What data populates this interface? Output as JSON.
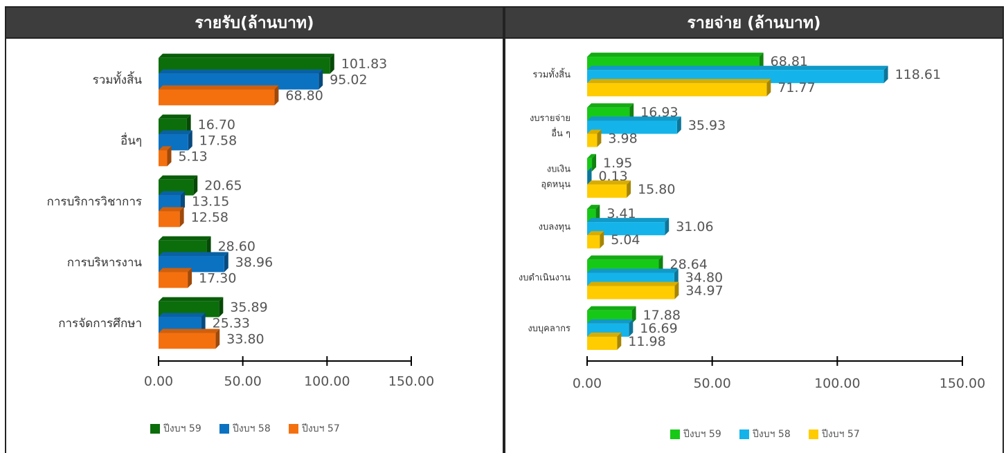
{
  "chart_data": [
    {
      "type": "bar",
      "orientation": "horizontal",
      "title": "รายรับ(ล้านบาท)",
      "categories": [
        "รวมทั้งสิ้น",
        "อื่นๆ",
        "การบริการวิชาการ",
        "การบริหารงาน",
        "การจัดการศึกษา"
      ],
      "series": [
        {
          "name": "ปีงบฯ 59",
          "color": "#0b6e0b",
          "values": [
            101.83,
            16.7,
            20.65,
            28.6,
            35.89
          ],
          "value_labels": [
            "101.83",
            "16.70",
            "20.65",
            "28.60",
            "35.89"
          ]
        },
        {
          "name": "ปีงบฯ 58",
          "color": "#0b72c2",
          "values": [
            95.02,
            17.58,
            13.15,
            38.96,
            25.33
          ],
          "value_labels": [
            "95.02",
            "17.58",
            "13.15",
            "38.96",
            "25.33"
          ]
        },
        {
          "name": "ปีงบฯ 57",
          "color": "#f4700f",
          "values": [
            68.8,
            5.13,
            12.58,
            17.3,
            33.8
          ],
          "value_labels": [
            "68.80",
            "5.13",
            "12.58",
            "17.30",
            "33.80"
          ]
        }
      ],
      "xlim": [
        0,
        150
      ],
      "xticks": [
        {
          "value": 0,
          "label": "0.00"
        },
        {
          "value": 50,
          "label": "50.00"
        },
        {
          "value": 100,
          "label": "100.00"
        },
        {
          "value": 150,
          "label": "150.00"
        }
      ],
      "legend": "bottom"
    },
    {
      "type": "bar",
      "orientation": "horizontal",
      "title": "รายจ่าย (ล้านบาท)",
      "categories": [
        "รวมทั้งสิ้น",
        "งบรายจ่าย\nอื่น ๆ",
        "งบเงิน\nอุดหนุน",
        "งบลงทุน",
        "งบดำเนินงาน",
        "งบบุคลากร"
      ],
      "series": [
        {
          "name": "ปีงบฯ 59",
          "color": "#17c917",
          "values": [
            68.81,
            16.93,
            1.95,
            3.41,
            28.64,
            17.88
          ],
          "value_labels": [
            "68.81",
            "16.93",
            "1.95",
            "3.41",
            "28.64",
            "17.88"
          ]
        },
        {
          "name": "ปีงบฯ 58",
          "color": "#14b4ea",
          "values": [
            118.61,
            35.93,
            0.13,
            31.06,
            34.8,
            16.69
          ],
          "value_labels": [
            "118.61",
            "35.93",
            "0.13",
            "31.06",
            "34.80",
            "16.69"
          ]
        },
        {
          "name": "ปีงบฯ 57",
          "color": "#ffcc00",
          "values": [
            71.77,
            3.98,
            15.8,
            5.04,
            34.97,
            11.98
          ],
          "value_labels": [
            "71.77",
            "3.98",
            "15.80",
            "5.04",
            "34.97",
            "11.98"
          ]
        }
      ],
      "xlim": [
        0,
        150
      ],
      "xticks": [
        {
          "value": 0,
          "label": "0.00"
        },
        {
          "value": 50,
          "label": "50.00"
        },
        {
          "value": 100,
          "label": "100.00"
        },
        {
          "value": 150,
          "label": "150.00"
        }
      ],
      "legend": "bottom"
    }
  ]
}
